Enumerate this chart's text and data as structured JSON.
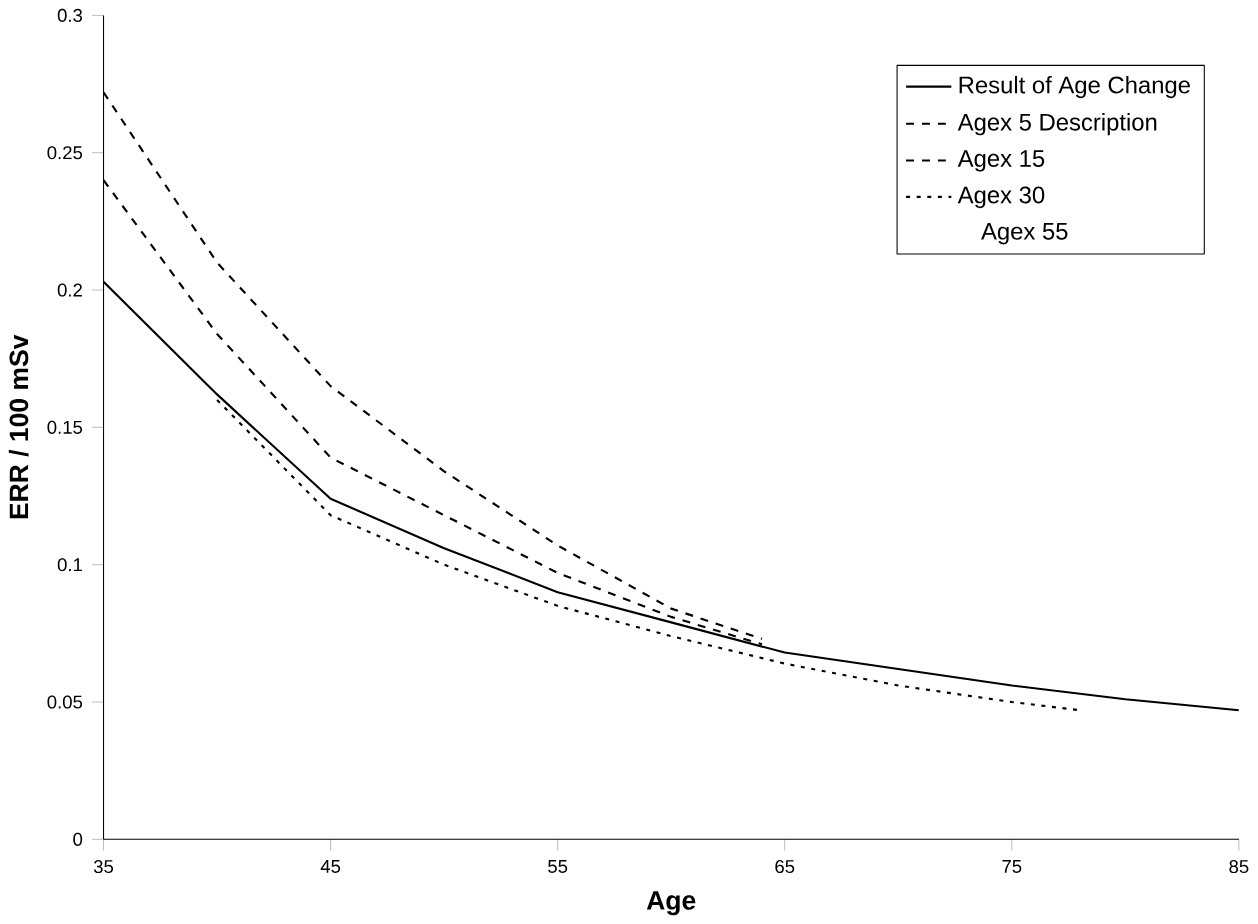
{
  "chart_data": {
    "type": "line",
    "xlabel": "Age",
    "ylabel": "ERR / 100 mSv",
    "xlim": [
      35,
      85
    ],
    "xticks": [
      35,
      45,
      55,
      65,
      75,
      85
    ],
    "ylim": [
      0,
      0.3
    ],
    "yticks": [
      0,
      0.05,
      0.1,
      0.15,
      0.2,
      0.25,
      0.3
    ],
    "legend": "top right",
    "grid": false,
    "series": [
      {
        "name": "Result of Age Change",
        "color": "#000000",
        "line_style": "solid",
        "x": [
          35,
          40,
          45,
          50,
          55,
          60,
          65,
          70,
          75,
          80,
          85
        ],
        "values": [
          0.203,
          0.162,
          0.124,
          0.106,
          0.09,
          0.079,
          0.068,
          0.062,
          0.056,
          0.051,
          0.047
        ]
      },
      {
        "name": "Agex 5  Description",
        "color": "#000000",
        "line_style": "dashed",
        "x": [
          35,
          40,
          45,
          50,
          55,
          60,
          64
        ],
        "values": [
          0.272,
          0.21,
          0.165,
          0.134,
          0.107,
          0.084,
          0.073
        ]
      },
      {
        "name": "Agex 15",
        "color": "#000000",
        "line_style": "dashed",
        "x": [
          35,
          40,
          45,
          50,
          55,
          60,
          64
        ],
        "values": [
          0.24,
          0.184,
          0.139,
          0.118,
          0.097,
          0.081,
          0.071
        ]
      },
      {
        "name": "Agex 30",
        "color": "#000000",
        "line_style": "dotted",
        "x": [
          40,
          45,
          50,
          55,
          60,
          65,
          70,
          75,
          78
        ],
        "values": [
          0.16,
          0.118,
          0.1,
          0.085,
          0.074,
          0.064,
          0.056,
          0.05,
          0.047
        ]
      },
      {
        "name": "Agex 55"
      }
    ]
  }
}
